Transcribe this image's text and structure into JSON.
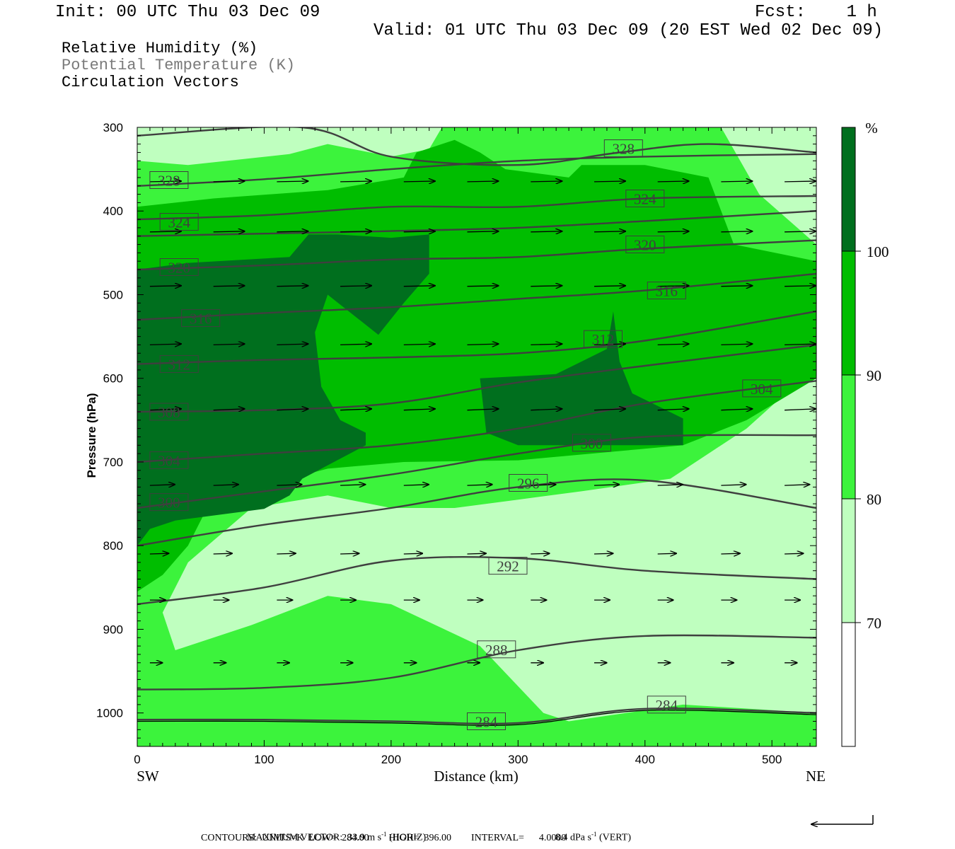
{
  "header": {
    "init": "Init: 00 UTC Thu 03 Dec 09",
    "fcst": "Fcst:    1 h",
    "valid": "Valid: 01 UTC Thu 03 Dec 09 (20 EST Wed 02 Dec 09)",
    "legend_lines": [
      "Relative Humidity (%)",
      "Potential Temperature (K)",
      "Circulation Vectors"
    ]
  },
  "colors": {
    "rh_70_80": "#bfffbf",
    "rh_80_90": "#3cf33c",
    "rh_90_100": "#00bd00",
    "rh_100_plus": "#006f1e",
    "theta_line": "#3f3f3f"
  },
  "chart_data": {
    "type": "cross-section",
    "xlabel": "Distance (km)",
    "ylabel": "Pressure (hPa)",
    "x_ticks": [
      0,
      100,
      200,
      300,
      400,
      500
    ],
    "y_ticks": [
      300,
      400,
      500,
      600,
      700,
      800,
      900,
      1000
    ],
    "xlim": [
      0,
      535
    ],
    "ylim": [
      300,
      1040
    ],
    "y_inverted": true,
    "endpoints": {
      "left": "SW",
      "right": "NE"
    },
    "colorbar": {
      "unit": "%",
      "ticks": [
        70,
        80,
        90,
        100
      ]
    },
    "theta_contours": [
      {
        "label": "328",
        "points": [
          [
            0,
            310
          ],
          [
            130,
            300
          ],
          [
            200,
            335
          ],
          [
            300,
            345
          ],
          [
            380,
            330
          ],
          [
            450,
            320
          ],
          [
            535,
            330
          ]
        ]
      },
      {
        "label": "328",
        "points": [
          [
            0,
            370
          ],
          [
            100,
            362
          ],
          [
            200,
            350
          ],
          [
            300,
            340
          ],
          [
            400,
            335
          ],
          [
            535,
            332
          ]
        ]
      },
      {
        "label": "324",
        "points": [
          [
            0,
            410
          ],
          [
            100,
            405
          ],
          [
            200,
            395
          ],
          [
            300,
            395
          ],
          [
            400,
            385
          ],
          [
            535,
            382
          ]
        ]
      },
      {
        "label": "324",
        "points": [
          [
            0,
            430
          ],
          [
            100,
            427
          ],
          [
            200,
            424
          ],
          [
            300,
            420
          ],
          [
            400,
            412
          ],
          [
            535,
            400
          ]
        ]
      },
      {
        "label": "320",
        "points": [
          [
            0,
            470
          ],
          [
            100,
            465
          ],
          [
            200,
            458
          ],
          [
            300,
            455
          ],
          [
            400,
            445
          ],
          [
            535,
            435
          ]
        ]
      },
      {
        "label": "316",
        "points": [
          [
            0,
            530
          ],
          [
            100,
            522
          ],
          [
            200,
            515
          ],
          [
            300,
            505
          ],
          [
            400,
            495
          ],
          [
            535,
            475
          ]
        ]
      },
      {
        "label": "312",
        "points": [
          [
            0,
            583
          ],
          [
            100,
            578
          ],
          [
            200,
            575
          ],
          [
            300,
            570
          ],
          [
            400,
            555
          ],
          [
            535,
            520
          ]
        ]
      },
      {
        "label": "308",
        "points": [
          [
            0,
            640
          ],
          [
            100,
            638
          ],
          [
            200,
            630
          ],
          [
            300,
            605
          ],
          [
            400,
            585
          ],
          [
            535,
            560
          ]
        ]
      },
      {
        "label": "304",
        "points": [
          [
            0,
            700
          ],
          [
            100,
            690
          ],
          [
            200,
            680
          ],
          [
            300,
            660
          ],
          [
            400,
            630
          ],
          [
            535,
            603
          ]
        ]
      },
      {
        "label": "300",
        "points": [
          [
            0,
            755
          ],
          [
            100,
            735
          ],
          [
            200,
            715
          ],
          [
            300,
            690
          ],
          [
            400,
            670
          ],
          [
            535,
            668
          ]
        ]
      },
      {
        "label": "296",
        "points": [
          [
            0,
            800
          ],
          [
            100,
            775
          ],
          [
            200,
            755
          ],
          [
            300,
            730
          ],
          [
            400,
            722
          ],
          [
            535,
            755
          ]
        ]
      },
      {
        "label": "292",
        "points": [
          [
            0,
            870
          ],
          [
            100,
            850
          ],
          [
            200,
            818
          ],
          [
            300,
            815
          ],
          [
            400,
            830
          ],
          [
            535,
            840
          ]
        ]
      },
      {
        "label": "288",
        "points": [
          [
            0,
            972
          ],
          [
            100,
            970
          ],
          [
            200,
            958
          ],
          [
            300,
            925
          ],
          [
            400,
            908
          ],
          [
            535,
            910
          ]
        ]
      },
      {
        "label": "284",
        "points": [
          [
            0,
            1008
          ],
          [
            100,
            1008
          ],
          [
            200,
            1010
          ],
          [
            300,
            1012
          ],
          [
            400,
            995
          ],
          [
            535,
            1000
          ]
        ]
      }
    ],
    "contour_labels": [
      {
        "text": "328",
        "x": 383,
        "p": 325
      },
      {
        "text": "328",
        "x": 25,
        "p": 363
      },
      {
        "text": "324",
        "x": 400,
        "p": 385
      },
      {
        "text": "324",
        "x": 33,
        "p": 413
      },
      {
        "text": "320",
        "x": 400,
        "p": 440
      },
      {
        "text": "320",
        "x": 33,
        "p": 467
      },
      {
        "text": "316",
        "x": 417,
        "p": 495
      },
      {
        "text": "316",
        "x": 50,
        "p": 528
      },
      {
        "text": "312",
        "x": 367,
        "p": 553
      },
      {
        "text": "312",
        "x": 33,
        "p": 583
      },
      {
        "text": "308",
        "x": 25,
        "p": 640
      },
      {
        "text": "304",
        "x": 492,
        "p": 612
      },
      {
        "text": "304",
        "x": 25,
        "p": 698
      },
      {
        "text": "300",
        "x": 358,
        "p": 677
      },
      {
        "text": "300",
        "x": 25,
        "p": 748
      },
      {
        "text": "296",
        "x": 308,
        "p": 725
      },
      {
        "text": "292",
        "x": 292,
        "p": 824
      },
      {
        "text": "288",
        "x": 283,
        "p": 924
      },
      {
        "text": "284",
        "x": 417,
        "p": 990
      },
      {
        "text": "284",
        "x": 275,
        "p": 1010
      }
    ],
    "vector_rows": [
      {
        "p": 365,
        "u": 1.0,
        "w": 0.02
      },
      {
        "p": 425,
        "u": 1.0,
        "w": 0.02
      },
      {
        "p": 490,
        "u": 1.0,
        "w": 0.02
      },
      {
        "p": 560,
        "u": 1.0,
        "w": 0.03
      },
      {
        "p": 638,
        "u": 1.0,
        "w": 0.04
      },
      {
        "p": 728,
        "u": 0.8,
        "w": 0.03
      },
      {
        "p": 810,
        "u": 0.6,
        "w": 0.02
      },
      {
        "p": 865,
        "u": 0.5,
        "w": 0.0
      },
      {
        "p": 940,
        "u": 0.4,
        "w": 0.0
      }
    ],
    "rh_regions": [
      {
        "level": "rh_70_80",
        "points": [
          [
            0,
            300
          ],
          [
            535,
            300
          ],
          [
            535,
            1040
          ],
          [
            0,
            1040
          ]
        ]
      },
      {
        "level": "rh_80_90",
        "points": [
          [
            0,
            340
          ],
          [
            40,
            345
          ],
          [
            120,
            332
          ],
          [
            150,
            320
          ],
          [
            200,
            335
          ],
          [
            230,
            326
          ],
          [
            240,
            300
          ],
          [
            380,
            300
          ],
          [
            460,
            300
          ],
          [
            490,
            380
          ],
          [
            535,
            440
          ],
          [
            535,
            585
          ],
          [
            480,
            660
          ],
          [
            420,
            720
          ],
          [
            350,
            735
          ],
          [
            300,
            745
          ],
          [
            250,
            755
          ],
          [
            200,
            755
          ],
          [
            150,
            740
          ],
          [
            90,
            755
          ],
          [
            40,
            820
          ],
          [
            20,
            880
          ],
          [
            30,
            925
          ],
          [
            90,
            895
          ],
          [
            150,
            860
          ],
          [
            200,
            870
          ],
          [
            270,
            920
          ],
          [
            320,
            1000
          ],
          [
            340,
            1010
          ],
          [
            430,
            990
          ],
          [
            535,
            1000
          ],
          [
            535,
            1040
          ],
          [
            0,
            1040
          ]
        ]
      },
      {
        "level": "rh_90_100",
        "points": [
          [
            0,
            395
          ],
          [
            60,
            385
          ],
          [
            150,
            375
          ],
          [
            210,
            360
          ],
          [
            220,
            330
          ],
          [
            250,
            315
          ],
          [
            270,
            330
          ],
          [
            290,
            350
          ],
          [
            340,
            360
          ],
          [
            350,
            345
          ],
          [
            400,
            345
          ],
          [
            450,
            360
          ],
          [
            470,
            440
          ],
          [
            535,
            460
          ],
          [
            535,
            600
          ],
          [
            480,
            650
          ],
          [
            430,
            680
          ],
          [
            300,
            698
          ],
          [
            210,
            700
          ],
          [
            150,
            708
          ],
          [
            120,
            720
          ],
          [
            60,
            740
          ],
          [
            40,
            800
          ],
          [
            20,
            835
          ],
          [
            0,
            855
          ]
        ]
      },
      {
        "level": "rh_100_plus",
        "points": [
          [
            0,
            470
          ],
          [
            40,
            462
          ],
          [
            120,
            455
          ],
          [
            135,
            428
          ],
          [
            158,
            428
          ],
          [
            200,
            432
          ],
          [
            230,
            428
          ],
          [
            230,
            475
          ],
          [
            210,
            510
          ],
          [
            190,
            548
          ],
          [
            150,
            500
          ],
          [
            140,
            545
          ],
          [
            145,
            610
          ],
          [
            160,
            650
          ],
          [
            180,
            665
          ],
          [
            180,
            680
          ],
          [
            130,
            720
          ],
          [
            120,
            740
          ],
          [
            100,
            756
          ],
          [
            30,
            770
          ],
          [
            10,
            780
          ],
          [
            0,
            800
          ]
        ]
      },
      {
        "level": "rh_100_plus",
        "points": [
          [
            270,
            600
          ],
          [
            330,
            595
          ],
          [
            370,
            565
          ],
          [
            375,
            520
          ],
          [
            380,
            580
          ],
          [
            390,
            618
          ],
          [
            430,
            648
          ],
          [
            430,
            680
          ],
          [
            380,
            680
          ],
          [
            300,
            680
          ],
          [
            275,
            665
          ]
        ]
      }
    ]
  },
  "footer": {
    "max_vector": "MAXIMUM VECTOR:  33.9 m s",
    "horiz_unit": "-1",
    "horiz": " (HORIZ)",
    "vert_val": "8.4 dPa s",
    "vert_unit": "-1",
    "vert": " (VERT)",
    "contours": "CONTOURS:  UNITS=K  LOW=  284.00        HIGH=  396.00        INTERVAL=      4.0000"
  }
}
